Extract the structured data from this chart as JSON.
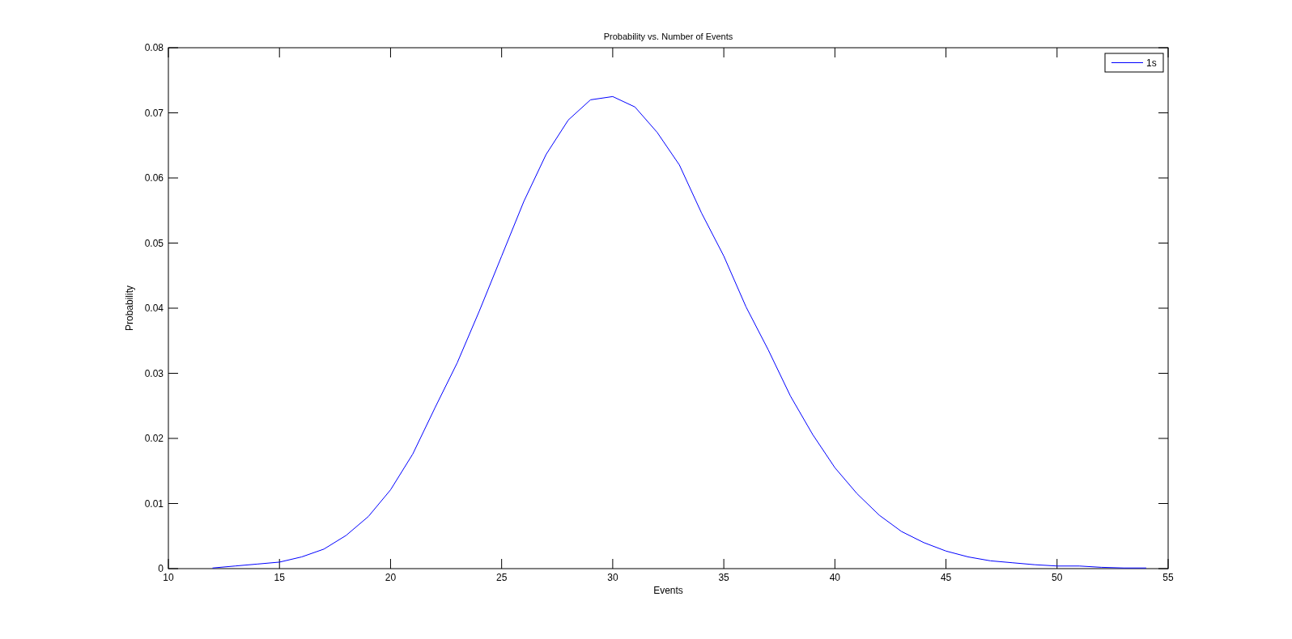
{
  "chart_data": {
    "type": "line",
    "title": "Probability vs. Number of Events",
    "xlabel": "Events",
    "ylabel": "Probability",
    "x": [
      12,
      13,
      14,
      15,
      16,
      17,
      18,
      19,
      20,
      21,
      22,
      23,
      24,
      25,
      26,
      27,
      28,
      29,
      30,
      31,
      32,
      33,
      34,
      35,
      36,
      37,
      38,
      39,
      40,
      41,
      42,
      43,
      44,
      45,
      46,
      47,
      48,
      49,
      50,
      51,
      52,
      53,
      54
    ],
    "series": [
      {
        "name": "1s",
        "color": "#0000ff",
        "values": [
          0.0001,
          0.0004,
          0.0007,
          0.001,
          0.0018,
          0.003,
          0.0051,
          0.008,
          0.0121,
          0.0176,
          0.0247,
          0.0316,
          0.0396,
          0.048,
          0.0564,
          0.0636,
          0.0689,
          0.072,
          0.0725,
          0.0709,
          0.067,
          0.062,
          0.0546,
          0.048,
          0.0402,
          0.0336,
          0.0265,
          0.0206,
          0.0155,
          0.0115,
          0.0082,
          0.0057,
          0.004,
          0.0027,
          0.0018,
          0.0012,
          0.0009,
          0.0006,
          0.0004,
          0.0004,
          0.0002,
          0.0001,
          0.0001
        ]
      }
    ],
    "xlim": [
      10,
      55
    ],
    "xticks": [
      10,
      15,
      20,
      25,
      30,
      35,
      40,
      45,
      50,
      55
    ],
    "ylim": [
      0,
      0.08
    ],
    "yticks": [
      0,
      0.01,
      0.02,
      0.03,
      0.04,
      0.05,
      0.06,
      0.07,
      0.08
    ],
    "legend": "top right",
    "line_style": "solid"
  }
}
